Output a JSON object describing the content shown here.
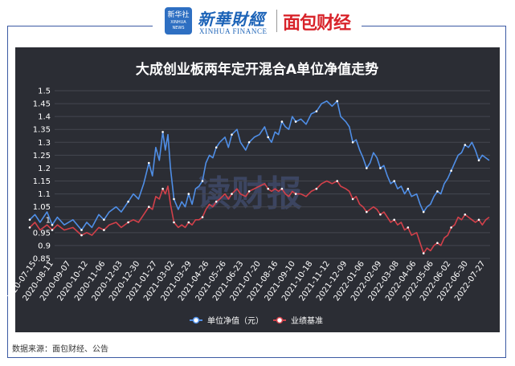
{
  "header": {
    "logo_text_top": "新华社",
    "logo_text_bottom": "XINHUA NEWS",
    "brand_xinhua": "新華財經",
    "brand_xinhua_en": "XINHUA FINANCE",
    "brand_mianbao": "面包财经"
  },
  "colors": {
    "nav": "#4f8ee6",
    "benchmark": "#d2404a",
    "background": "#2b2d34"
  },
  "chart_data": {
    "type": "line",
    "title": "大成创业板两年定开混合A单位净值走势",
    "watermark": "读财报",
    "ylim": [
      0.85,
      1.5
    ],
    "yticks": [
      "0.85",
      "0.9",
      "0.95",
      "1",
      "1.05",
      "1.1",
      "1.15",
      "1.2",
      "1.25",
      "1.3",
      "1.35",
      "1.4",
      "1.45",
      "1.5"
    ],
    "xticks": [
      "2020-07-15",
      "2020-08-11",
      "2020-09-07",
      "2020-10-12",
      "2020-11-06",
      "2020-12-03",
      "2020-12-30",
      "2021-01-27",
      "2021-03-02",
      "2021-03-29",
      "2021-04-26",
      "2021-05-26",
      "2021-06-23",
      "2021-07-20",
      "2021-08-16",
      "2021-09-10",
      "2021-10-18",
      "2021-11-12",
      "2021-12-09",
      "2022-01-06",
      "2022-02-09",
      "2022-03-08",
      "2022-04-06",
      "2022-05-06",
      "2022-06-02",
      "2022-06-30",
      "2022-07-27"
    ],
    "legend_position": "bottom",
    "series": [
      {
        "name": "单位净值（元）",
        "points": [
          [
            0,
            1.0
          ],
          [
            0.3,
            1.02
          ],
          [
            0.6,
            0.99
          ],
          [
            1,
            1.03
          ],
          [
            1.3,
            0.98
          ],
          [
            1.6,
            1.01
          ],
          [
            2,
            0.98
          ],
          [
            2.5,
            1.0
          ],
          [
            3,
            0.96
          ],
          [
            3.3,
            0.99
          ],
          [
            3.6,
            0.97
          ],
          [
            4,
            1.02
          ],
          [
            4.3,
            1.0
          ],
          [
            4.6,
            1.03
          ],
          [
            5,
            1.05
          ],
          [
            5.3,
            1.03
          ],
          [
            5.7,
            1.07
          ],
          [
            6,
            1.1
          ],
          [
            6.3,
            1.08
          ],
          [
            6.6,
            1.14
          ],
          [
            6.9,
            1.22
          ],
          [
            7.1,
            1.17
          ],
          [
            7.3,
            1.28
          ],
          [
            7.5,
            1.23
          ],
          [
            7.7,
            1.34
          ],
          [
            7.85,
            1.27
          ],
          [
            8,
            1.33
          ],
          [
            8.15,
            1.2
          ],
          [
            8.35,
            1.08
          ],
          [
            8.6,
            1.04
          ],
          [
            8.8,
            1.07
          ],
          [
            9,
            1.05
          ],
          [
            9.2,
            1.1
          ],
          [
            9.4,
            1.06
          ],
          [
            9.6,
            1.12
          ],
          [
            9.8,
            1.13
          ],
          [
            10,
            1.15
          ],
          [
            10.2,
            1.22
          ],
          [
            10.4,
            1.25
          ],
          [
            10.6,
            1.24
          ],
          [
            10.8,
            1.28
          ],
          [
            11,
            1.3
          ],
          [
            11.3,
            1.32
          ],
          [
            11.5,
            1.28
          ],
          [
            11.7,
            1.33
          ],
          [
            12,
            1.35
          ],
          [
            12.2,
            1.3
          ],
          [
            12.5,
            1.27
          ],
          [
            12.7,
            1.3
          ],
          [
            13,
            1.32
          ],
          [
            13.3,
            1.33
          ],
          [
            13.6,
            1.36
          ],
          [
            13.8,
            1.32
          ],
          [
            14,
            1.3
          ],
          [
            14.2,
            1.34
          ],
          [
            14.4,
            1.33
          ],
          [
            14.6,
            1.38
          ],
          [
            14.8,
            1.36
          ],
          [
            15,
            1.35
          ],
          [
            15.2,
            1.4
          ],
          [
            15.4,
            1.38
          ],
          [
            15.7,
            1.39
          ],
          [
            16,
            1.37
          ],
          [
            16.3,
            1.41
          ],
          [
            16.6,
            1.42
          ],
          [
            16.9,
            1.45
          ],
          [
            17.2,
            1.46
          ],
          [
            17.5,
            1.44
          ],
          [
            17.8,
            1.46
          ],
          [
            18,
            1.4
          ],
          [
            18.3,
            1.38
          ],
          [
            18.5,
            1.36
          ],
          [
            18.7,
            1.3
          ],
          [
            18.9,
            1.31
          ],
          [
            19.1,
            1.27
          ],
          [
            19.3,
            1.24
          ],
          [
            19.5,
            1.2
          ],
          [
            19.7,
            1.22
          ],
          [
            19.9,
            1.26
          ],
          [
            20.1,
            1.24
          ],
          [
            20.3,
            1.2
          ],
          [
            20.5,
            1.21
          ],
          [
            20.7,
            1.17
          ],
          [
            20.9,
            1.14
          ],
          [
            21.1,
            1.15
          ],
          [
            21.3,
            1.12
          ],
          [
            21.5,
            1.13
          ],
          [
            21.7,
            1.1
          ],
          [
            21.9,
            1.12
          ],
          [
            22.1,
            1.09
          ],
          [
            22.4,
            1.1
          ],
          [
            22.6,
            1.06
          ],
          [
            22.8,
            1.03
          ],
          [
            23,
            1.05
          ],
          [
            23.2,
            1.06
          ],
          [
            23.4,
            1.09
          ],
          [
            23.6,
            1.11
          ],
          [
            23.8,
            1.1
          ],
          [
            24,
            1.14
          ],
          [
            24.2,
            1.16
          ],
          [
            24.4,
            1.19
          ],
          [
            24.6,
            1.22
          ],
          [
            24.8,
            1.25
          ],
          [
            25,
            1.26
          ],
          [
            25.2,
            1.29
          ],
          [
            25.4,
            1.28
          ],
          [
            25.6,
            1.3
          ],
          [
            25.8,
            1.27
          ],
          [
            26,
            1.23
          ],
          [
            26.2,
            1.25
          ],
          [
            26.4,
            1.24
          ],
          [
            26.6,
            1.23
          ]
        ]
      },
      {
        "name": "业绩基准",
        "points": [
          [
            0,
            0.97
          ],
          [
            0.3,
            0.99
          ],
          [
            0.6,
            0.96
          ],
          [
            1,
            0.98
          ],
          [
            1.3,
            0.96
          ],
          [
            1.6,
            0.98
          ],
          [
            2,
            0.96
          ],
          [
            2.5,
            0.97
          ],
          [
            3,
            0.94
          ],
          [
            3.3,
            0.95
          ],
          [
            3.6,
            0.94
          ],
          [
            4,
            0.97
          ],
          [
            4.3,
            0.96
          ],
          [
            4.6,
            0.98
          ],
          [
            5,
            0.99
          ],
          [
            5.3,
            0.97
          ],
          [
            5.7,
            0.99
          ],
          [
            6,
            1.0
          ],
          [
            6.3,
            0.99
          ],
          [
            6.6,
            1.02
          ],
          [
            6.9,
            1.05
          ],
          [
            7.1,
            1.04
          ],
          [
            7.3,
            1.09
          ],
          [
            7.5,
            1.08
          ],
          [
            7.7,
            1.12
          ],
          [
            7.85,
            1.1
          ],
          [
            8,
            1.13
          ],
          [
            8.15,
            1.06
          ],
          [
            8.35,
            0.99
          ],
          [
            8.6,
            0.97
          ],
          [
            8.8,
            0.98
          ],
          [
            9,
            0.97
          ],
          [
            9.2,
            0.99
          ],
          [
            9.4,
            0.98
          ],
          [
            9.6,
            1.0
          ],
          [
            9.8,
            1.0
          ],
          [
            10,
            1.01
          ],
          [
            10.2,
            1.04
          ],
          [
            10.4,
            1.06
          ],
          [
            10.6,
            1.05
          ],
          [
            10.8,
            1.07
          ],
          [
            11,
            1.08
          ],
          [
            11.3,
            1.1
          ],
          [
            11.5,
            1.08
          ],
          [
            11.7,
            1.1
          ],
          [
            12,
            1.12
          ],
          [
            12.2,
            1.1
          ],
          [
            12.5,
            1.09
          ],
          [
            12.7,
            1.11
          ],
          [
            13,
            1.12
          ],
          [
            13.3,
            1.13
          ],
          [
            13.6,
            1.14
          ],
          [
            13.8,
            1.12
          ],
          [
            14,
            1.11
          ],
          [
            14.2,
            1.12
          ],
          [
            14.4,
            1.11
          ],
          [
            14.6,
            1.12
          ],
          [
            14.8,
            1.1
          ],
          [
            15,
            1.09
          ],
          [
            15.2,
            1.11
          ],
          [
            15.4,
            1.1
          ],
          [
            15.7,
            1.1
          ],
          [
            16,
            1.09
          ],
          [
            16.3,
            1.11
          ],
          [
            16.6,
            1.12
          ],
          [
            16.9,
            1.14
          ],
          [
            17.2,
            1.15
          ],
          [
            17.5,
            1.14
          ],
          [
            17.8,
            1.15
          ],
          [
            18,
            1.13
          ],
          [
            18.3,
            1.12
          ],
          [
            18.5,
            1.11
          ],
          [
            18.7,
            1.08
          ],
          [
            18.9,
            1.09
          ],
          [
            19.1,
            1.06
          ],
          [
            19.3,
            1.05
          ],
          [
            19.5,
            1.03
          ],
          [
            19.7,
            1.04
          ],
          [
            19.9,
            1.05
          ],
          [
            20.1,
            1.04
          ],
          [
            20.3,
            1.02
          ],
          [
            20.5,
            1.03
          ],
          [
            20.7,
            1.01
          ],
          [
            20.9,
            0.99
          ],
          [
            21.1,
            1.0
          ],
          [
            21.3,
            0.98
          ],
          [
            21.5,
            0.99
          ],
          [
            21.7,
            0.96
          ],
          [
            21.9,
            0.97
          ],
          [
            22.1,
            0.94
          ],
          [
            22.4,
            0.95
          ],
          [
            22.6,
            0.91
          ],
          [
            22.8,
            0.87
          ],
          [
            23,
            0.89
          ],
          [
            23.2,
            0.88
          ],
          [
            23.4,
            0.9
          ],
          [
            23.6,
            0.91
          ],
          [
            23.8,
            0.9
          ],
          [
            24,
            0.93
          ],
          [
            24.2,
            0.94
          ],
          [
            24.4,
            0.97
          ],
          [
            24.6,
            0.98
          ],
          [
            24.8,
            1.01
          ],
          [
            25,
            1.0
          ],
          [
            25.2,
            1.02
          ],
          [
            25.4,
            1.01
          ],
          [
            25.6,
            1.0
          ],
          [
            25.8,
            0.99
          ],
          [
            26,
            1.0
          ],
          [
            26.2,
            0.98
          ],
          [
            26.4,
            1.0
          ],
          [
            26.6,
            1.01
          ]
        ]
      }
    ]
  },
  "footer": {
    "source": "数据来源：面包财经、公告"
  }
}
